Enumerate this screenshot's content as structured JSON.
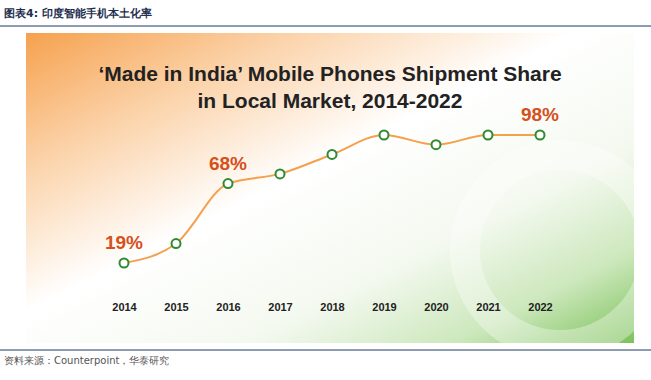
{
  "header": "图表4:  印度智能手机本土化率",
  "source": "资料来源：Counterpoint，华泰研究",
  "chart_data": {
    "type": "line",
    "title": "‘Made in India’ Mobile Phones Shipment Share in Local Market, 2014-2022",
    "categories": [
      "2014",
      "2015",
      "2016",
      "2017",
      "2018",
      "2019",
      "2020",
      "2021",
      "2022"
    ],
    "values": [
      19,
      31,
      68,
      74,
      86,
      98,
      92,
      98,
      98
    ],
    "value_labels": [
      "19%",
      null,
      "68%",
      null,
      null,
      null,
      null,
      null,
      "98%"
    ],
    "data_labels": true,
    "color": "#f4a04c",
    "marker": "circle",
    "tick_labels": "x",
    "grid": false
  }
}
